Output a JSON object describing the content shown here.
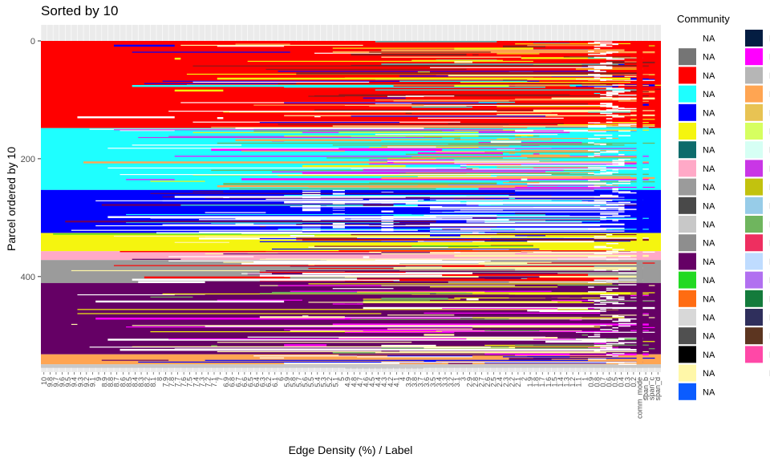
{
  "chart_data": {
    "type": "heatmap",
    "title": "Sorted by 10",
    "xlabel": "Edge Density (%) / Label",
    "ylabel": "Parcel ordered by 10",
    "y_ticks": [
      0,
      200,
      400
    ],
    "ylim": [
      0,
      555
    ],
    "x_tick_labels": [
      "10",
      "9.8",
      "9.7",
      "9.6",
      "9.5",
      "9.4",
      "9.3",
      "9.2",
      "9.1",
      "9",
      "8.9",
      "8.8",
      "8.7",
      "8.6",
      "8.5",
      "8.4",
      "8.3",
      "8.2",
      "8.1",
      "8",
      "7.9",
      "7.8",
      "7.7",
      "7.6",
      "7.5",
      "7.4",
      "7.3",
      "7.2",
      "7.1",
      "7",
      "6.9",
      "6.8",
      "6.7",
      "6.6",
      "6.5",
      "6.4",
      "6.3",
      "6.2",
      "6.1",
      "6",
      "5.9",
      "5.8",
      "5.7",
      "5.6",
      "5.5",
      "5.4",
      "5.3",
      "5.2",
      "5.1",
      "5",
      "4.9",
      "4.8",
      "4.7",
      "4.6",
      "4.5",
      "4.4",
      "4.3",
      "4.2",
      "4.1",
      "4",
      "3.9",
      "3.8",
      "3.7",
      "3.6",
      "3.5",
      "3.4",
      "3.3",
      "3.2",
      "3.1",
      "3",
      "2.9",
      "2.8",
      "2.7",
      "2.6",
      "2.5",
      "2.4",
      "2.3",
      "2.2",
      "2.1",
      "2",
      "1.9",
      "1.8",
      "1.7",
      "1.6",
      "1.5",
      "1.4",
      "1.3",
      "1.2",
      "1.1",
      "1",
      "0.9",
      "0.8",
      "0.7",
      "0.6",
      "0.5",
      "0.4",
      "0.3",
      "0.2",
      "comm_mode",
      "span_b",
      "span_c",
      "span_d"
    ],
    "blocks": [
      {
        "community": "red",
        "start": 0,
        "end": 148
      },
      {
        "community": "cyan",
        "start": 148,
        "end": 253
      },
      {
        "community": "blue",
        "start": 253,
        "end": 326
      },
      {
        "community": "yellow",
        "start": 326,
        "end": 357
      },
      {
        "community": "pink",
        "start": 357,
        "end": 372
      },
      {
        "community": "gray",
        "start": 372,
        "end": 411
      },
      {
        "community": "purple",
        "start": 411,
        "end": 532
      },
      {
        "community": "orange",
        "start": 532,
        "end": 549
      },
      {
        "community": "lightgray",
        "start": 549,
        "end": 555
      }
    ],
    "legend": {
      "title": "Community",
      "position": "right",
      "col1": [
        {
          "label": "NA",
          "color": "#ffffff"
        },
        {
          "label": "NA",
          "color": "#757575"
        },
        {
          "label": "NA",
          "color": "#ff0000"
        },
        {
          "label": "NA",
          "color": "#1effff"
        },
        {
          "label": "NA",
          "color": "#0000ff"
        },
        {
          "label": "NA",
          "color": "#f5f50f"
        },
        {
          "label": "NA",
          "color": "#0d6b6b"
        },
        {
          "label": "NA",
          "color": "#ffa9c7"
        },
        {
          "label": "NA",
          "color": "#9b9b9b"
        },
        {
          "label": "NA",
          "color": "#494949"
        },
        {
          "label": "NA",
          "color": "#c8c8c8"
        },
        {
          "label": "NA",
          "color": "#8e8e8e"
        },
        {
          "label": "NA",
          "color": "#650065"
        },
        {
          "label": "NA",
          "color": "#22d922"
        },
        {
          "label": "NA",
          "color": "#ff6c12"
        },
        {
          "label": "NA",
          "color": "#d8d8d8"
        },
        {
          "label": "NA",
          "color": "#505050"
        },
        {
          "label": "NA",
          "color": "#000000"
        },
        {
          "label": "NA",
          "color": "#fff7a8"
        },
        {
          "label": "NA",
          "color": "#0b5cff"
        }
      ],
      "col2": [
        {
          "label": "NA",
          "color": "#041d42"
        },
        {
          "label": "NA",
          "color": "#ff00ff"
        },
        {
          "label": "NA",
          "color": "#b6b6b6"
        },
        {
          "label": "NA",
          "color": "#ffa552"
        },
        {
          "label": "NA",
          "color": "#e8c353"
        },
        {
          "label": "NA",
          "color": "#d6ff60"
        },
        {
          "label": "NA",
          "color": "#d6fff4"
        },
        {
          "label": "NA",
          "color": "#c936e6"
        },
        {
          "label": "NA",
          "color": "#c2c20e"
        },
        {
          "label": "NA",
          "color": "#97cce8"
        },
        {
          "label": "NA",
          "color": "#6fb55e"
        },
        {
          "label": "NA",
          "color": "#ee2f60"
        },
        {
          "label": "NA",
          "color": "#bfdcff"
        },
        {
          "label": "NA",
          "color": "#b170f0"
        },
        {
          "label": "NA",
          "color": "#147b3c"
        },
        {
          "label": "NA",
          "color": "#2f2f5c"
        },
        {
          "label": "NA",
          "color": "#5c3520"
        },
        {
          "label": "NA",
          "color": "#ff48a7"
        },
        {
          "label": "NA",
          "color": null
        }
      ]
    },
    "panel_background": "#ebebeb",
    "grid": false
  }
}
